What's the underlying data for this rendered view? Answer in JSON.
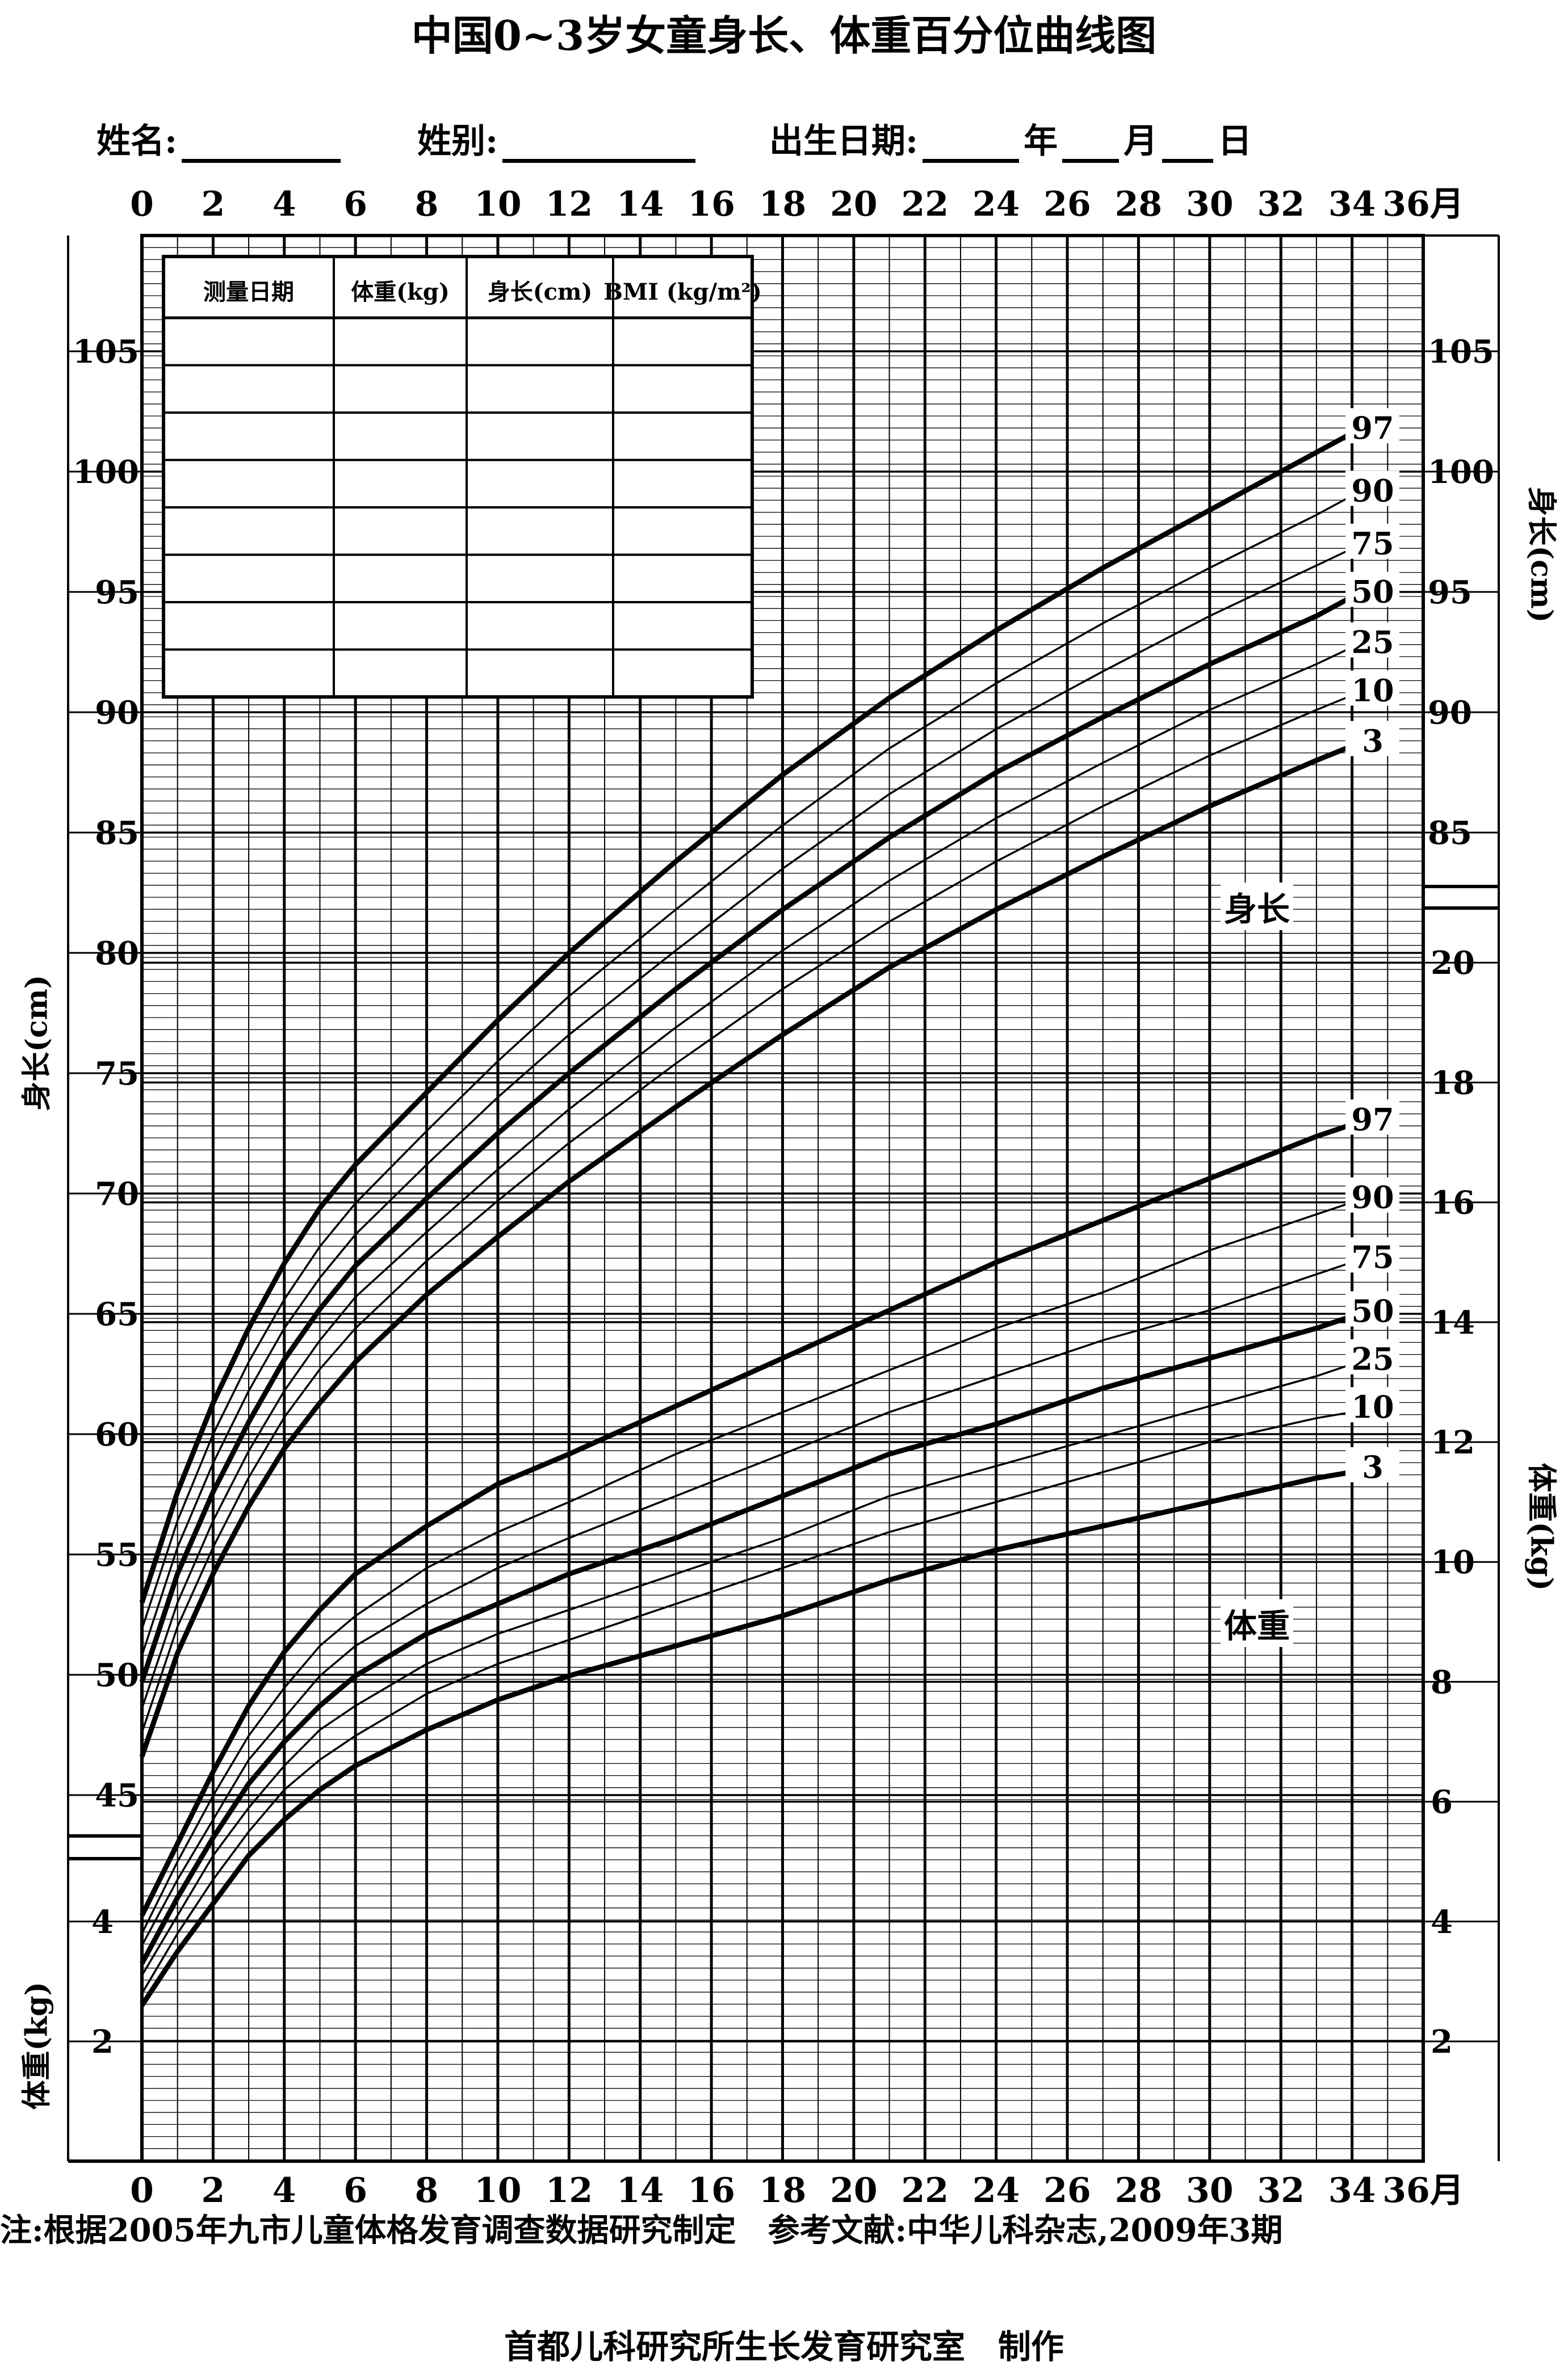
{
  "title": "中国0~3岁女童身长、体重百分位曲线图",
  "form": {
    "name_label": "姓名:",
    "sex_label": "姓别:",
    "birth_label": "出生日期:",
    "year": "年",
    "month": "月",
    "day": "日"
  },
  "record_table": {
    "headers": [
      "测量日期",
      "体重(kg)",
      "身长(cm)",
      "BMI (kg/m²)"
    ],
    "rows": 8
  },
  "axes": {
    "x_ticks": [
      "0",
      "2",
      "4",
      "6",
      "8",
      "10",
      "12",
      "14",
      "16",
      "18",
      "20",
      "22",
      "24",
      "26",
      "28",
      "30",
      "32",
      "34",
      "36月"
    ],
    "length_ticks": [
      "45",
      "50",
      "55",
      "60",
      "65",
      "70",
      "75",
      "80",
      "85",
      "90",
      "95",
      "100",
      "105"
    ],
    "weight_ticks_left": [
      "2",
      "4"
    ],
    "weight_ticks_right": [
      "2",
      "4",
      "6",
      "8",
      "10",
      "12",
      "14",
      "16",
      "18",
      "20"
    ],
    "length_axis_label": "身长(cm)",
    "weight_axis_label": "体重(kg)"
  },
  "section_labels": {
    "length": "身长",
    "weight": "体重"
  },
  "percentile_labels": [
    "97",
    "90",
    "75",
    "50",
    "25",
    "10",
    "3"
  ],
  "note": "注:根据2005年九市儿童体格发育调查数据研究制定　参考文献:中华儿科杂志,2009年3期",
  "maker": "首都儿科研究所生长发育研究室　制作",
  "chart_data": [
    {
      "type": "line",
      "title": "身长",
      "xlabel": "月",
      "ylabel": "身长(cm)",
      "x": [
        0,
        1,
        2,
        3,
        4,
        5,
        6,
        8,
        10,
        12,
        15,
        18,
        21,
        24,
        27,
        30,
        33,
        34
      ],
      "ylim": [
        41,
        110
      ],
      "xlim": [
        0,
        36
      ],
      "series": [
        {
          "name": "97",
          "values": [
            53.0,
            57.6,
            61.3,
            64.4,
            67.1,
            69.4,
            71.2,
            74.2,
            77.2,
            80.0,
            83.8,
            87.4,
            90.6,
            93.4,
            96.0,
            98.4,
            100.8,
            101.6
          ]
        },
        {
          "name": "90",
          "values": [
            51.9,
            56.4,
            60.0,
            63.0,
            65.6,
            67.8,
            69.6,
            72.6,
            75.5,
            78.2,
            81.8,
            85.3,
            88.5,
            91.2,
            93.7,
            96.0,
            98.2,
            99.0
          ]
        },
        {
          "name": "75",
          "values": [
            50.8,
            55.3,
            58.8,
            61.8,
            64.4,
            66.5,
            68.3,
            71.2,
            74.0,
            76.6,
            80.1,
            83.5,
            86.6,
            89.3,
            91.7,
            94.0,
            96.1,
            96.8
          ]
        },
        {
          "name": "50",
          "values": [
            49.7,
            54.2,
            57.6,
            60.5,
            63.1,
            65.2,
            67.0,
            69.8,
            72.5,
            75.0,
            78.5,
            81.8,
            84.8,
            87.5,
            89.8,
            92.0,
            94.0,
            94.8
          ]
        },
        {
          "name": "25",
          "values": [
            48.6,
            53.0,
            56.4,
            59.3,
            61.8,
            63.9,
            65.7,
            68.4,
            71.0,
            73.5,
            76.9,
            80.1,
            83.0,
            85.6,
            87.9,
            90.1,
            92.0,
            92.7
          ]
        },
        {
          "name": "10",
          "values": [
            47.6,
            52.0,
            55.3,
            58.2,
            60.7,
            62.7,
            64.4,
            67.2,
            69.7,
            72.1,
            75.4,
            78.5,
            81.3,
            83.8,
            86.1,
            88.2,
            90.1,
            90.7
          ]
        },
        {
          "name": "3",
          "values": [
            46.6,
            50.9,
            54.2,
            57.0,
            59.4,
            61.3,
            63.0,
            65.8,
            68.2,
            70.5,
            73.6,
            76.6,
            79.4,
            81.8,
            84.0,
            86.1,
            88.0,
            88.6
          ]
        }
      ]
    },
    {
      "type": "line",
      "title": "体重",
      "xlabel": "月",
      "ylabel": "体重(kg)",
      "x": [
        0,
        1,
        2,
        3,
        4,
        5,
        6,
        8,
        10,
        12,
        15,
        18,
        21,
        24,
        27,
        30,
        33,
        34
      ],
      "ylim": [
        0,
        21.5
      ],
      "xlim": [
        0,
        36
      ],
      "series": [
        {
          "name": "97",
          "values": [
            4.1,
            5.3,
            6.5,
            7.6,
            8.5,
            9.2,
            9.8,
            10.6,
            11.3,
            11.8,
            12.6,
            13.4,
            14.2,
            15.0,
            15.7,
            16.4,
            17.1,
            17.3
          ]
        },
        {
          "name": "90",
          "values": [
            3.8,
            5.0,
            6.1,
            7.1,
            7.9,
            8.6,
            9.1,
            9.9,
            10.5,
            11.0,
            11.8,
            12.5,
            13.2,
            13.9,
            14.5,
            15.2,
            15.8,
            16.0
          ]
        },
        {
          "name": "75",
          "values": [
            3.6,
            4.7,
            5.7,
            6.7,
            7.4,
            8.1,
            8.6,
            9.3,
            9.9,
            10.4,
            11.1,
            11.8,
            12.5,
            13.1,
            13.7,
            14.2,
            14.8,
            15.0
          ]
        },
        {
          "name": "50",
          "values": [
            3.3,
            4.4,
            5.4,
            6.3,
            7.0,
            7.6,
            8.1,
            8.8,
            9.3,
            9.8,
            10.4,
            11.1,
            11.8,
            12.3,
            12.9,
            13.4,
            13.9,
            14.1
          ]
        },
        {
          "name": "25",
          "values": [
            3.1,
            4.1,
            5.1,
            5.9,
            6.6,
            7.2,
            7.6,
            8.3,
            8.8,
            9.2,
            9.8,
            10.4,
            11.1,
            11.6,
            12.1,
            12.6,
            13.1,
            13.3
          ]
        },
        {
          "name": "10",
          "values": [
            2.8,
            3.8,
            4.7,
            5.5,
            6.2,
            6.7,
            7.1,
            7.8,
            8.3,
            8.7,
            9.3,
            9.9,
            10.5,
            11.0,
            11.5,
            12.0,
            12.4,
            12.5
          ]
        },
        {
          "name": "3",
          "values": [
            2.6,
            3.5,
            4.3,
            5.1,
            5.7,
            6.2,
            6.6,
            7.2,
            7.7,
            8.1,
            8.6,
            9.1,
            9.7,
            10.2,
            10.6,
            11.0,
            11.4,
            11.5
          ]
        }
      ]
    }
  ]
}
